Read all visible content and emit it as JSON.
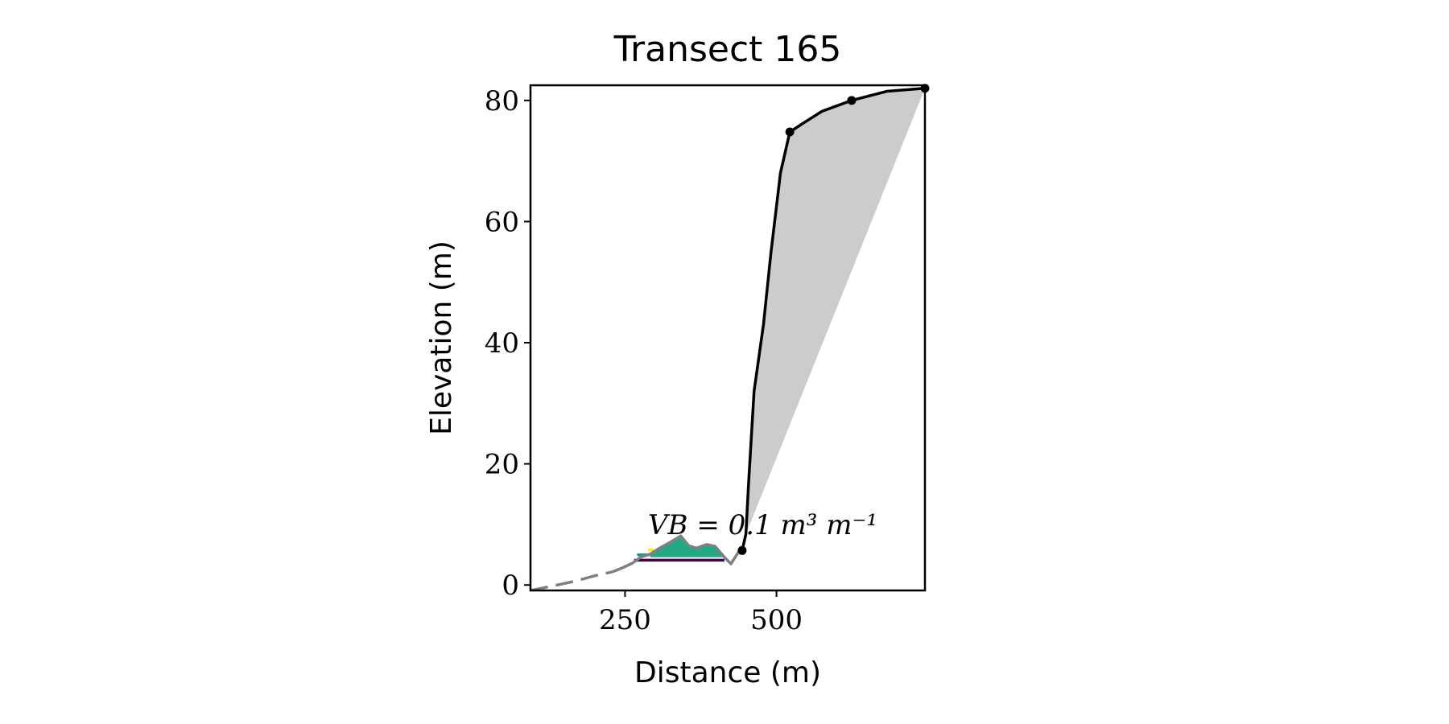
{
  "chart_data": {
    "type": "line",
    "title": "Transect 165",
    "xlabel": "Distance (m)",
    "ylabel": "Elevation (m)",
    "annotation": "VB = 0.1 m³ m⁻¹",
    "xlim": [
      94,
      745
    ],
    "ylim": [
      -0.9,
      82.5
    ],
    "xticks": [
      250,
      500
    ],
    "yticks": [
      0,
      20,
      40,
      60,
      80
    ],
    "grid": false,
    "series": [
      {
        "style": "fill",
        "color": "#cccccc",
        "x": [
          449.5,
          454,
          463,
          478.5,
          491,
          506.5,
          522,
          545,
          575,
          624,
          682,
          745,
          449.5
        ],
        "values": [
          8.4,
          16.9,
          32,
          43,
          55,
          68,
          74.8,
          76.3,
          78.2,
          80,
          81.5,
          82,
          8.4
        ]
      },
      {
        "style": "area",
        "color": "#22a884",
        "base": 4.6,
        "x": [
          291.5,
          307,
          320,
          342,
          355,
          368,
          385,
          398.5,
          414
        ],
        "values": [
          5.1,
          6.1,
          6.8,
          8.1,
          6.5,
          6.1,
          6.7,
          6.4,
          4.6
        ]
      },
      {
        "style": "line",
        "color": "#440154",
        "x": [
          265,
          414
        ],
        "values": [
          4.1,
          4.1
        ]
      },
      {
        "style": "line",
        "color": "#21918c",
        "x": [
          270,
          291
        ],
        "values": [
          5,
          5
        ]
      },
      {
        "style": "line",
        "color": "#fde725",
        "x": [
          288,
          297
        ],
        "values": [
          5.8,
          5.8
        ]
      },
      {
        "style": "dashed",
        "color": "#808080",
        "x": [
          94,
          138,
          170,
          199,
          230
        ],
        "values": [
          -0.9,
          0,
          0.7,
          1.5,
          2.2
        ]
      },
      {
        "style": "line",
        "color": "#808080",
        "x": [
          230,
          245,
          262,
          276,
          291.5,
          307,
          320,
          342,
          355,
          368,
          385,
          398.5,
          414,
          424.8,
          437,
          443.3
        ],
        "values": [
          2.2,
          2.8,
          3.6,
          4.6,
          5.1,
          6.1,
          6.8,
          8.1,
          6.5,
          6.1,
          6.7,
          6.4,
          4.6,
          3.5,
          5.4,
          5.7
        ]
      },
      {
        "style": "line",
        "color": "#000000",
        "x": [
          443.3,
          449.5,
          454,
          463,
          478.5,
          491,
          506.5,
          522,
          545,
          575,
          624,
          682,
          745
        ],
        "values": [
          5.7,
          8.4,
          16.9,
          32,
          43,
          55,
          68,
          74.8,
          76.3,
          78.2,
          80,
          81.5,
          82
        ]
      },
      {
        "style": "markers",
        "color": "#000000",
        "x": [
          443.3,
          522,
          624,
          745
        ],
        "values": [
          5.7,
          74.8,
          80,
          82
        ]
      }
    ]
  }
}
